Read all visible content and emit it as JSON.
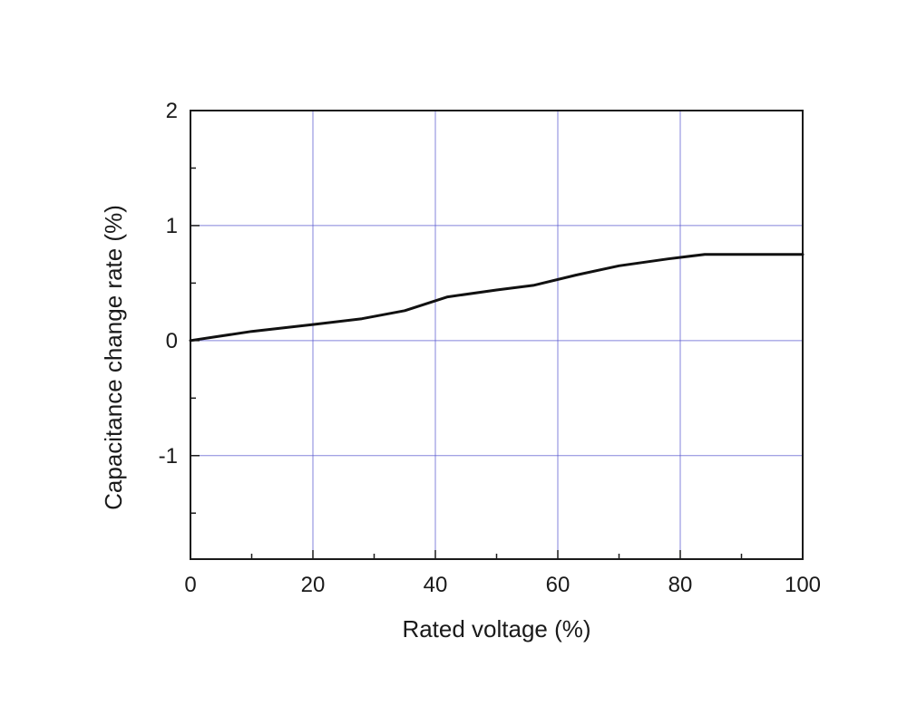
{
  "chart_data": {
    "type": "line",
    "title": "",
    "xlabel": "Rated voltage (%)",
    "ylabel": "Capacitance change rate (%)",
    "xlim": [
      0,
      100
    ],
    "ylim": [
      -1.9,
      2
    ],
    "x_ticks": [
      0,
      20,
      40,
      60,
      80,
      100
    ],
    "x_tick_labels": [
      "0",
      "20",
      "40",
      "60",
      "80",
      "100"
    ],
    "y_ticks": [
      2,
      1,
      0,
      -1
    ],
    "y_tick_labels": [
      "2",
      "1",
      "0",
      "-1"
    ],
    "grid": true,
    "grid_color": "#5a5ad0",
    "line_color": "#111111",
    "series": [
      {
        "x": [
          0,
          10,
          20,
          28,
          35,
          42,
          50,
          56,
          63,
          70,
          78,
          84,
          90,
          100
        ],
        "values": [
          0,
          0.08,
          0.14,
          0.19,
          0.26,
          0.38,
          0.44,
          0.48,
          0.57,
          0.65,
          0.71,
          0.75,
          0.75,
          0.75
        ]
      }
    ]
  }
}
